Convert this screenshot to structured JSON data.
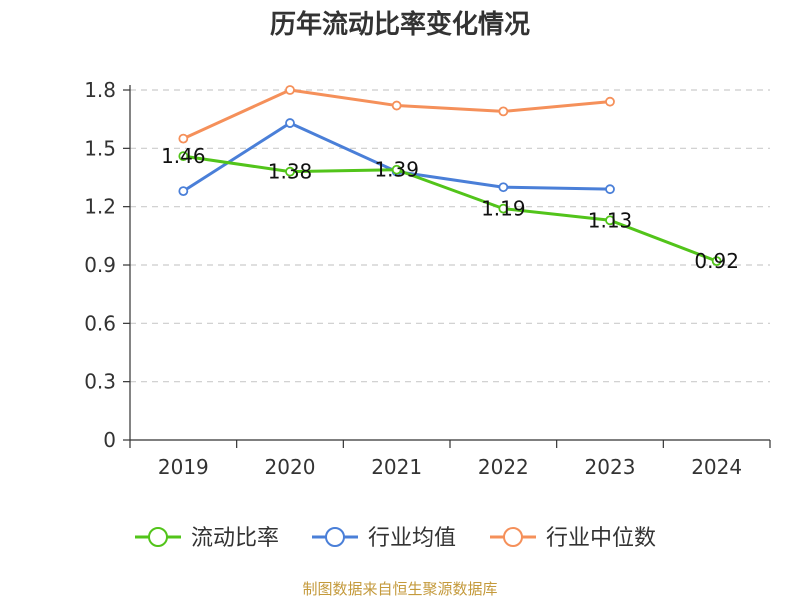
{
  "title": "历年流动比率变化情况",
  "source": "制图数据来自恒生聚源数据库",
  "chart_data": {
    "type": "line",
    "title": "历年流动比率变化情况",
    "categories": [
      "2019",
      "2020",
      "2021",
      "2022",
      "2023",
      "2024"
    ],
    "ylim": [
      0,
      1.8
    ],
    "yticks": [
      "0",
      "0.3",
      "0.6",
      "0.9",
      "1.2",
      "1.5",
      "1.8"
    ],
    "grid": true,
    "legend_position": "bottom",
    "series": [
      {
        "name": "流动比率",
        "color": "#52c41a",
        "values": [
          1.46,
          1.38,
          1.39,
          1.19,
          1.13,
          0.92
        ],
        "labels": [
          "1.46",
          "1.38",
          "1.39",
          "1.19",
          "1.13",
          "0.92"
        ]
      },
      {
        "name": "行业均值",
        "color": "#4a7fd8",
        "values": [
          1.28,
          1.63,
          1.38,
          1.3,
          1.29,
          null
        ]
      },
      {
        "name": "行业中位数",
        "color": "#f5905a",
        "values": [
          1.55,
          1.8,
          1.72,
          1.69,
          1.74,
          null
        ]
      }
    ]
  }
}
